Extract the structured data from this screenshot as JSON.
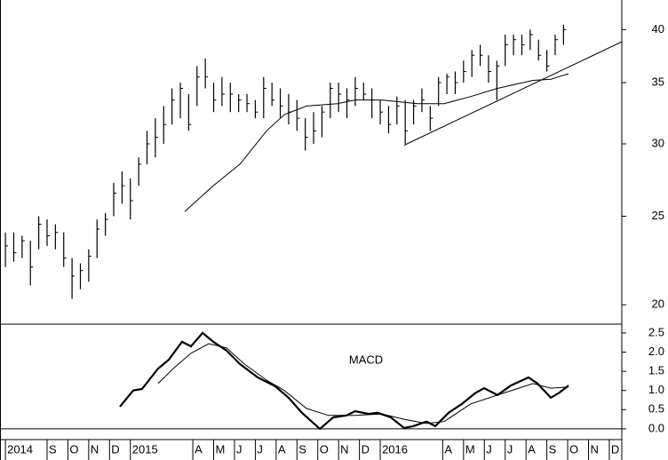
{
  "chart_data": [
    {
      "type": "ohlc",
      "log_scale": true,
      "color": "#000000",
      "xlim": [
        5.74,
        35.6
      ],
      "ylim": [
        19.05,
        43.1
      ],
      "yticks": [
        20,
        25,
        30,
        35,
        40
      ],
      "x": [
        6,
        6.4,
        6.8,
        7.2,
        7.6,
        8,
        8.4,
        8.8,
        9.2,
        9.6,
        10,
        10.4,
        10.8,
        11.2,
        11.6,
        12,
        12.4,
        12.8,
        13.2,
        13.6,
        14,
        14.4,
        14.8,
        15.2,
        15.6,
        16,
        16.4,
        16.8,
        17.2,
        17.6,
        18,
        18.4,
        18.8,
        19.2,
        19.6,
        20,
        20.4,
        20.8,
        21.2,
        21.6,
        22,
        22.4,
        22.8,
        23.2,
        23.6,
        24,
        24.4,
        24.8,
        25.2,
        25.6,
        26,
        26.4,
        26.8,
        27.2,
        27.6,
        28,
        28.4,
        28.8,
        29.2,
        29.6,
        30,
        30.4,
        30.8,
        31.2,
        31.6,
        32,
        32.4,
        32.8
      ],
      "low": [
        22,
        22.3,
        22.5,
        21,
        23,
        23.2,
        23,
        22,
        20.3,
        20.8,
        21.2,
        22.5,
        23.8,
        25,
        25.8,
        24.8,
        27,
        28.5,
        29,
        30,
        31.5,
        32,
        31,
        33,
        34.5,
        32.5,
        33,
        32.5,
        32.5,
        32.5,
        32,
        32,
        33,
        32,
        31.5,
        31,
        29.5,
        30,
        30.5,
        32,
        32.5,
        32,
        33,
        33.5,
        32,
        31.5,
        30.8,
        31.5,
        30,
        31.5,
        32.5,
        31,
        33,
        34,
        34,
        35,
        35.5,
        36.5,
        35,
        33.5,
        36.5,
        37.5,
        37.5,
        38,
        37,
        36,
        37.5,
        38.5
      ],
      "high": [
        24,
        24,
        23.8,
        23.5,
        25,
        24.8,
        24.5,
        24,
        22.5,
        22.2,
        23,
        24.8,
        25.2,
        27.2,
        28,
        27.5,
        29,
        31,
        32,
        33,
        34.5,
        35,
        34,
        36.5,
        37.2,
        35,
        35.5,
        35,
        34,
        34,
        33.5,
        35.5,
        35,
        34.5,
        34,
        33.5,
        32,
        32.5,
        33,
        35,
        35,
        34.5,
        35.5,
        35,
        34.5,
        33.5,
        33,
        33.8,
        33.5,
        33.5,
        34.5,
        33,
        35.5,
        35.8,
        36,
        37,
        38,
        38.5,
        37.5,
        37,
        39.5,
        39.5,
        39.5,
        40,
        39,
        38,
        39.5,
        40.5
      ],
      "close": [
        23.2,
        22.8,
        23.5,
        22,
        24.5,
        23.8,
        24,
        22.5,
        21.5,
        21.8,
        22.6,
        24.2,
        24.8,
        26.5,
        27,
        26,
        28.5,
        30,
        30.5,
        31.5,
        33.5,
        34.5,
        31.5,
        35.5,
        35.5,
        33.5,
        34,
        34,
        33.5,
        33.2,
        32.5,
        34.5,
        33.5,
        33,
        32.5,
        32,
        30.5,
        31,
        32.5,
        34.5,
        34,
        33.5,
        34.5,
        34,
        33.5,
        32.5,
        31.5,
        33,
        31,
        33,
        33.5,
        32,
        35,
        35.5,
        35,
        36,
        37.5,
        37.5,
        36,
        36.5,
        38.5,
        39,
        38.5,
        39.5,
        37.5,
        36.5,
        39,
        40
      ],
      "lines": [
        {
          "color": "#000000",
          "x": [
            14.61,
            15.98,
            17.26,
            18.54,
            19.4,
            20.46,
            21.95,
            22.8,
            24.08,
            25.79,
            27.07,
            28.35,
            29.63,
            31.34,
            32.19,
            33.04
          ],
          "values": [
            25.3,
            27,
            28.5,
            31,
            32.3,
            33,
            33.2,
            33.5,
            33.5,
            33.2,
            33.2,
            33.8,
            34.5,
            35.2,
            35.3,
            35.8
          ]
        },
        {
          "color": "#000000",
          "x": [
            25.15,
            35.6
          ],
          "values": [
            29.9,
            38.8
          ]
        }
      ]
    },
    {
      "type": "line",
      "annotation": "MACD",
      "zero_line": true,
      "color": "#000000",
      "xlim": [
        5.74,
        35.6
      ],
      "ylim": [
        -0.28,
        2.73
      ],
      "yticks": [
        {
          "value": 0,
          "label": "0.0"
        },
        0.5,
        {
          "value": 1,
          "label": "1.0"
        },
        1.5,
        {
          "value": 2,
          "label": "2.0"
        },
        2.5
      ],
      "xticks": [
        {
          "value": 6,
          "label": "2014"
        },
        {
          "value": 8,
          "label": "S"
        },
        {
          "value": 9,
          "label": "O"
        },
        {
          "value": 10,
          "label": "N"
        },
        {
          "value": 11,
          "label": "D"
        },
        {
          "value": 12,
          "label": "2015"
        },
        {
          "value": 15,
          "label": "A"
        },
        {
          "value": 16,
          "label": "M"
        },
        {
          "value": 17,
          "label": "J"
        },
        {
          "value": 18,
          "label": "J"
        },
        {
          "value": 19,
          "label": "A"
        },
        {
          "value": 20,
          "label": "S"
        },
        {
          "value": 21,
          "label": "O"
        },
        {
          "value": 22,
          "label": "N"
        },
        {
          "value": 23,
          "label": "D"
        },
        {
          "value": 24,
          "label": "2016"
        },
        {
          "value": 27,
          "label": "A"
        },
        {
          "value": 28,
          "label": "M"
        },
        {
          "value": 29,
          "label": "J"
        },
        {
          "value": 30,
          "label": "J"
        },
        {
          "value": 31,
          "label": "A"
        },
        {
          "value": 32,
          "label": "S"
        },
        {
          "value": 33,
          "label": "O"
        },
        {
          "value": 34,
          "label": "N"
        },
        {
          "value": 35,
          "label": "D"
        }
      ],
      "lines": [
        {
          "color": "#000000",
          "width": 2.2,
          "x": [
            11.5,
            12.14,
            12.56,
            13.33,
            13.84,
            14.48,
            14.91,
            15.47,
            15.98,
            16.62,
            17.26,
            18.11,
            18.96,
            19.6,
            20.24,
            21.1,
            21.74,
            22.38,
            22.8,
            23.44,
            23.87,
            24.51,
            25.15,
            25.58,
            26.22,
            26.64,
            27.28,
            27.92,
            28.56,
            28.99,
            29.63,
            30.27,
            31.12,
            31.55,
            32.19,
            32.62,
            33.04
          ],
          "values": [
            0.58,
            1.0,
            1.04,
            1.57,
            1.8,
            2.27,
            2.15,
            2.5,
            2.27,
            2.04,
            1.69,
            1.34,
            1.11,
            0.81,
            0.42,
            0,
            0.3,
            0.35,
            0.46,
            0.39,
            0.42,
            0.3,
            0.02,
            0.07,
            0.19,
            0.07,
            0.42,
            0.65,
            0.93,
            1.06,
            0.88,
            1.13,
            1.34,
            1.18,
            0.81,
            0.95,
            1.13
          ]
        },
        {
          "color": "#000000",
          "width": 1,
          "x": [
            13.33,
            14.06,
            14.91,
            15.76,
            16.62,
            17.47,
            18.54,
            19.39,
            20.46,
            21.52,
            22.8,
            24.08,
            25.15,
            26.22,
            27.07,
            28.35,
            29.63,
            31.34,
            32.19,
            33.04
          ],
          "values": [
            1.18,
            1.57,
            1.97,
            2.22,
            2.11,
            1.69,
            1.27,
            1.0,
            0.53,
            0.35,
            0.35,
            0.39,
            0.25,
            0.14,
            0.19,
            0.65,
            0.88,
            1.18,
            1.06,
            1.09
          ]
        }
      ]
    }
  ]
}
